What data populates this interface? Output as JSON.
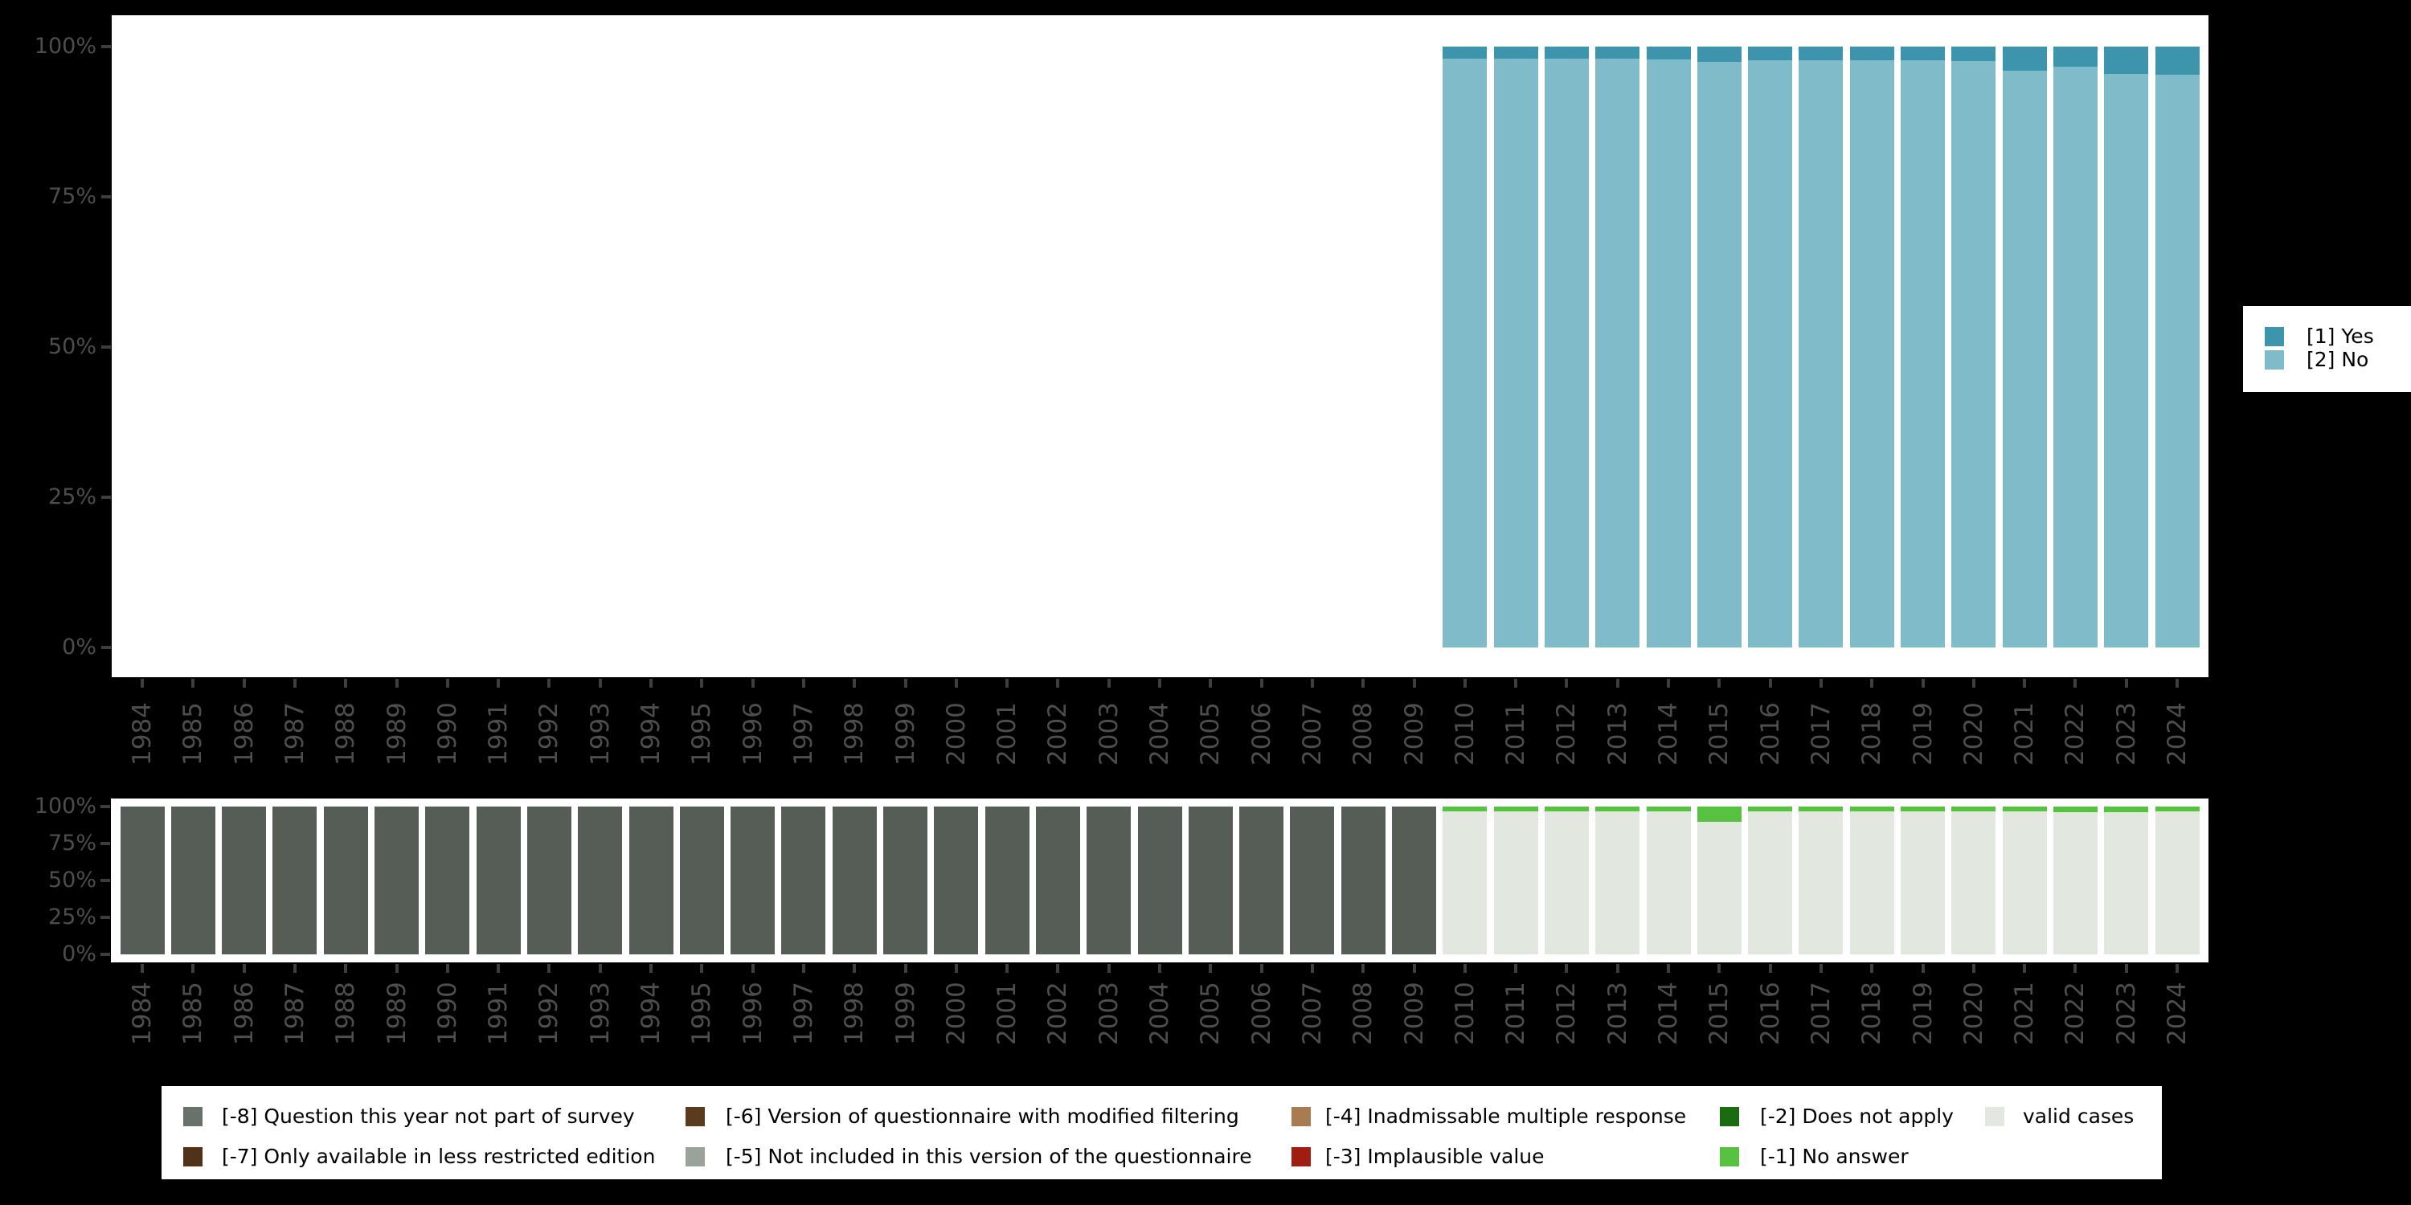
{
  "page": {
    "background": "#000000",
    "panel": "#ffffff",
    "axis_text_color": "#4d4d4d",
    "tick_color": "#3e3e3e"
  },
  "axes": {
    "y_tick_labels": [
      "0%",
      "25%",
      "50%",
      "75%",
      "100%"
    ],
    "y_tick_values": [
      0,
      25,
      50,
      75,
      100
    ],
    "years": [
      1984,
      1985,
      1986,
      1987,
      1988,
      1989,
      1990,
      1991,
      1992,
      1993,
      1994,
      1995,
      1996,
      1997,
      1998,
      1999,
      2000,
      2001,
      2002,
      2003,
      2004,
      2005,
      2006,
      2007,
      2008,
      2009,
      2010,
      2011,
      2012,
      2013,
      2014,
      2015,
      2016,
      2017,
      2018,
      2019,
      2020,
      2021,
      2022,
      2023,
      2024
    ]
  },
  "response_legend": {
    "items": [
      {
        "label": "[1] Yes",
        "color": "#3c95ad"
      },
      {
        "label": "[2] No",
        "color": "#80bbc9"
      }
    ]
  },
  "missing_legend": {
    "items": [
      {
        "label": "[-8] Question this year not part of survey",
        "color": "#68726b"
      },
      {
        "label": "[-7] Only available in less restricted edition",
        "color": "#50321a"
      },
      {
        "label": "[-6] Version of questionnaire with modified filtering",
        "color": "#5b3a1d"
      },
      {
        "label": "[-5] Not included in this version of the questionnaire",
        "color": "#9aa39a"
      },
      {
        "label": "[-4] Inadmissable multiple response",
        "color": "#a87c50"
      },
      {
        "label": "[-3] Implausible value",
        "color": "#a11d12"
      },
      {
        "label": "[-2] Does not apply",
        "color": "#1b6b10"
      },
      {
        "label": "[-1] No answer",
        "color": "#57c23f"
      },
      {
        "label": "valid cases",
        "color": "#e2e7e0"
      }
    ]
  },
  "chart_data": [
    {
      "type": "bar",
      "stacked": true,
      "title": "",
      "xlabel": "",
      "ylabel": "",
      "unit": "percent",
      "ylim": [
        0,
        100
      ],
      "grid": false,
      "legend_position": "right",
      "x": [
        2010,
        2011,
        2012,
        2013,
        2014,
        2015,
        2016,
        2017,
        2018,
        2019,
        2020,
        2021,
        2022,
        2023,
        2024
      ],
      "series": [
        {
          "name": "[1] Yes",
          "color": "#3c95ad",
          "values": [
            2.0,
            2.0,
            2.0,
            2.0,
            2.2,
            2.6,
            2.3,
            2.3,
            2.3,
            2.3,
            2.4,
            4.0,
            3.3,
            4.5,
            4.7
          ]
        },
        {
          "name": "[2] No",
          "color": "#80bbc9",
          "values": [
            98.0,
            98.0,
            98.0,
            98.0,
            97.8,
            97.4,
            97.7,
            97.7,
            97.7,
            97.7,
            97.6,
            96.0,
            96.7,
            95.5,
            95.3
          ]
        }
      ],
      "note": "no bars shown for 1984-2009"
    },
    {
      "type": "bar",
      "stacked": true,
      "title": "",
      "xlabel": "",
      "ylabel": "",
      "unit": "percent",
      "ylim": [
        0,
        100
      ],
      "grid": false,
      "legend_position": "bottom",
      "x": [
        1984,
        1985,
        1986,
        1987,
        1988,
        1989,
        1990,
        1991,
        1992,
        1993,
        1994,
        1995,
        1996,
        1997,
        1998,
        1999,
        2000,
        2001,
        2002,
        2003,
        2004,
        2005,
        2006,
        2007,
        2008,
        2009,
        2010,
        2011,
        2012,
        2013,
        2014,
        2015,
        2016,
        2017,
        2018,
        2019,
        2020,
        2021,
        2022,
        2023,
        2024
      ],
      "series": [
        {
          "name": "[-8] Question this year not part of survey",
          "color": "#565c56",
          "values": [
            100,
            100,
            100,
            100,
            100,
            100,
            100,
            100,
            100,
            100,
            100,
            100,
            100,
            100,
            100,
            100,
            100,
            100,
            100,
            100,
            100,
            100,
            100,
            100,
            100,
            100,
            0,
            0,
            0,
            0,
            0,
            0,
            0,
            0,
            0,
            0,
            0,
            0,
            0,
            0,
            0
          ]
        },
        {
          "name": "[-1] No answer",
          "color": "#57c23f",
          "values": [
            0,
            0,
            0,
            0,
            0,
            0,
            0,
            0,
            0,
            0,
            0,
            0,
            0,
            0,
            0,
            0,
            0,
            0,
            0,
            0,
            0,
            0,
            0,
            0,
            0,
            0,
            3.4,
            3.2,
            3.2,
            3.2,
            3.2,
            10.2,
            3.2,
            3.4,
            3.2,
            3.4,
            3.4,
            3.2,
            3.6,
            3.6,
            3.2
          ]
        },
        {
          "name": "valid cases",
          "color": "#e2e7e0",
          "values": [
            0,
            0,
            0,
            0,
            0,
            0,
            0,
            0,
            0,
            0,
            0,
            0,
            0,
            0,
            0,
            0,
            0,
            0,
            0,
            0,
            0,
            0,
            0,
            0,
            0,
            0,
            96.6,
            96.8,
            96.8,
            96.8,
            96.8,
            89.8,
            96.8,
            96.6,
            96.8,
            96.6,
            96.6,
            96.8,
            96.4,
            96.4,
            96.8
          ]
        }
      ]
    }
  ]
}
